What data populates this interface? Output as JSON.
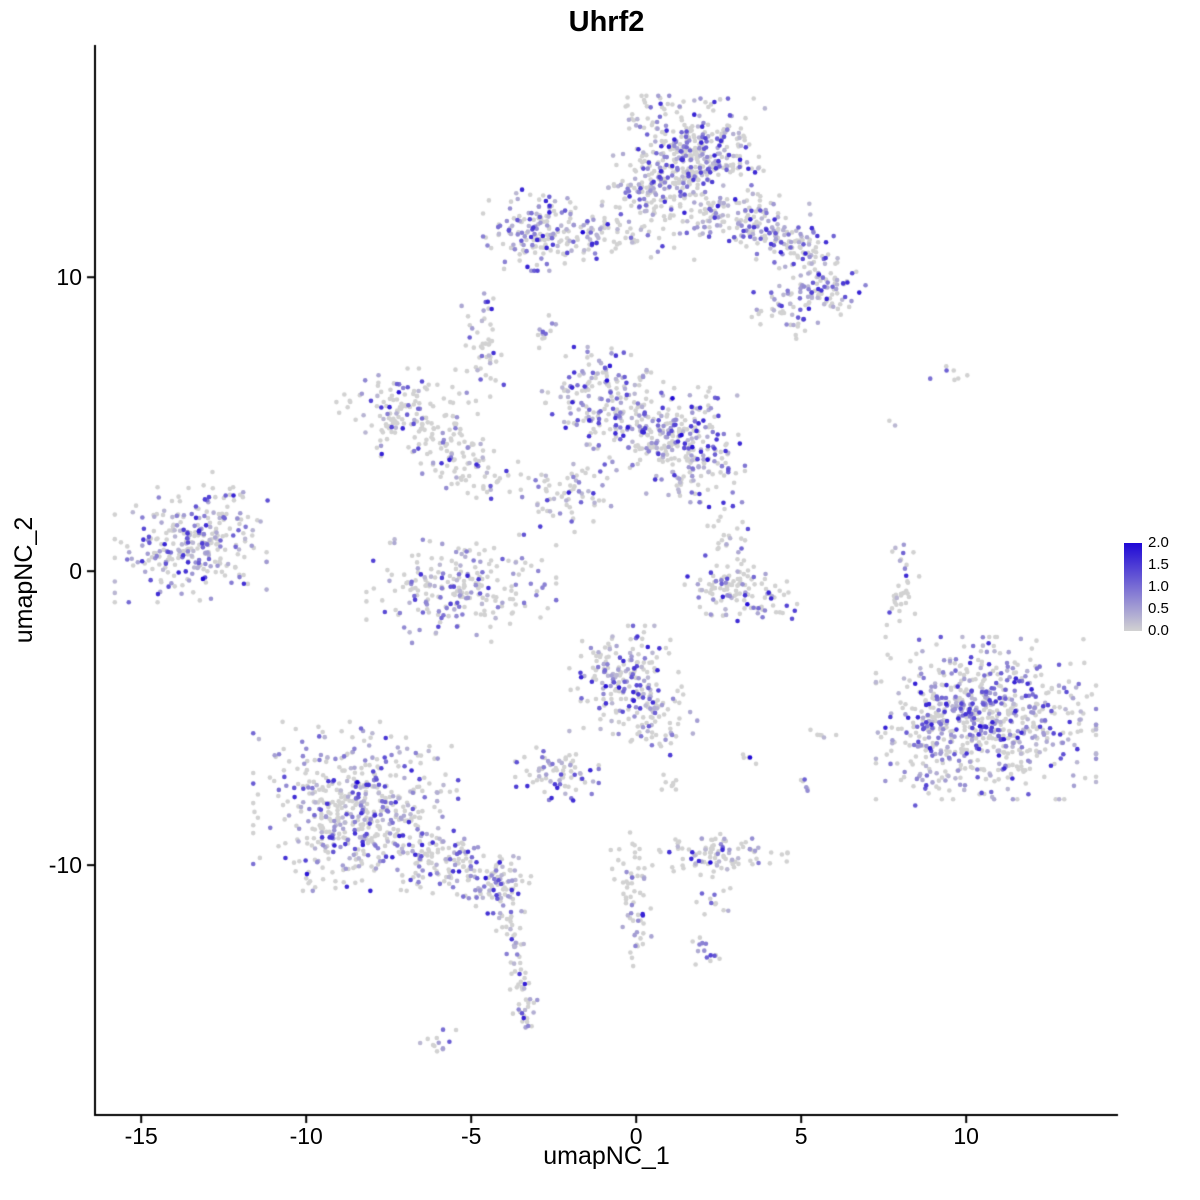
{
  "chart_data": {
    "type": "scatter",
    "title": "Uhrf2",
    "xlabel": "umapNC_1",
    "ylabel": "umapNC_2",
    "xlim": [
      -16.4,
      14.6
    ],
    "ylim": [
      -18.5,
      17.9
    ],
    "x_ticks": [
      -15,
      -10,
      -5,
      0,
      5,
      10
    ],
    "y_ticks": [
      10,
      0,
      -10
    ],
    "grid": false,
    "legend": {
      "position": "right",
      "ticks": [
        "2.0",
        "1.5",
        "1.0",
        "0.5",
        "0.0"
      ],
      "vmin": 0.0,
      "vmax": 2.0
    },
    "colors": {
      "low": "#d2d2d2",
      "high": "#1f08d6",
      "axis": "#000000",
      "background": "#ffffff"
    },
    "point_radius": 2.3,
    "seed": 42,
    "clusters": [
      {
        "name": "top-main",
        "cx": 1.6,
        "cy": 14.1,
        "sx": 1.0,
        "sy": 0.9,
        "rot": 0,
        "n": 420,
        "f": 0.45
      },
      {
        "name": "top-fringe",
        "cx": 0.4,
        "cy": 12.8,
        "sx": 0.7,
        "sy": 0.5,
        "rot": 0,
        "n": 80,
        "f": 0.4
      },
      {
        "name": "top-right-arm",
        "cx": 3.3,
        "cy": 11.9,
        "sx": 1.1,
        "sy": 0.5,
        "rot": -0.3,
        "n": 170,
        "f": 0.45
      },
      {
        "name": "arm-elbow",
        "cx": 5.0,
        "cy": 10.9,
        "sx": 0.55,
        "sy": 0.4,
        "rot": -0.5,
        "n": 55,
        "f": 0.5
      },
      {
        "name": "topright-blob",
        "cx": 5.8,
        "cy": 9.6,
        "sx": 0.5,
        "sy": 0.5,
        "rot": 0,
        "n": 85,
        "f": 0.6
      },
      {
        "name": "topright-sub",
        "cx": 4.5,
        "cy": 8.8,
        "sx": 0.45,
        "sy": 0.45,
        "rot": 0,
        "n": 45,
        "f": 0.55
      },
      {
        "name": "upperleft-cluster",
        "cx": -2.8,
        "cy": 11.6,
        "sx": 0.8,
        "sy": 0.6,
        "rot": 0,
        "n": 170,
        "f": 0.5
      },
      {
        "name": "upperleft-arm",
        "cx": -0.6,
        "cy": 11.4,
        "sx": 1.1,
        "sy": 0.35,
        "rot": 0,
        "n": 70,
        "f": 0.4
      },
      {
        "name": "tiny-mid-upper",
        "cx": -2.8,
        "cy": 8.4,
        "sx": 0.2,
        "sy": 0.35,
        "rot": 0,
        "n": 12,
        "f": 0.4
      },
      {
        "name": "mid-top",
        "cx": -0.9,
        "cy": 5.9,
        "sx": 0.85,
        "sy": 0.75,
        "rot": 0,
        "n": 190,
        "f": 0.45
      },
      {
        "name": "mid-right",
        "cx": 1.8,
        "cy": 4.3,
        "sx": 0.65,
        "sy": 0.85,
        "rot": 0,
        "n": 170,
        "f": 0.55
      },
      {
        "name": "mid-bridge",
        "cx": 0.4,
        "cy": 4.5,
        "sx": 0.9,
        "sy": 0.6,
        "rot": 0,
        "n": 110,
        "f": 0.35
      },
      {
        "name": "mid-lower-tail",
        "cx": -2.0,
        "cy": 2.7,
        "sx": 0.7,
        "sy": 0.55,
        "rot": 0.5,
        "n": 70,
        "f": 0.4
      },
      {
        "name": "left-loop",
        "cx": -6.9,
        "cy": 5.4,
        "sx": 0.95,
        "sy": 0.65,
        "rot": 0,
        "n": 150,
        "f": 0.35
      },
      {
        "name": "loop-arm",
        "cx": -5.2,
        "cy": 3.7,
        "sx": 0.85,
        "sy": 0.5,
        "rot": -0.5,
        "n": 90,
        "f": 0.3
      },
      {
        "name": "thin-strand",
        "cx": -4.6,
        "cy": 7.5,
        "sx": 0.3,
        "sy": 0.7,
        "rot": 0,
        "n": 40,
        "f": 0.35
      },
      {
        "name": "strand-tip",
        "cx": -4.5,
        "cy": 9.2,
        "sx": 0.15,
        "sy": 0.25,
        "rot": 0,
        "n": 8,
        "f": 0.3
      },
      {
        "name": "far-left",
        "cx": -13.5,
        "cy": 0.9,
        "sx": 1.0,
        "sy": 0.85,
        "rot": 0,
        "n": 270,
        "f": 0.5
      },
      {
        "name": "far-left-halo",
        "cx": -12.2,
        "cy": 1.5,
        "sx": 0.6,
        "sy": 0.9,
        "rot": 0,
        "n": 22,
        "f": 0.3
      },
      {
        "name": "midlow-annulus",
        "cx": -5.3,
        "cy": -0.6,
        "sx": 1.25,
        "sy": 0.8,
        "rot": 0,
        "n": 230,
        "f": 0.35
      },
      {
        "name": "comma",
        "cx": 3.2,
        "cy": -0.7,
        "sx": 0.75,
        "sy": 0.45,
        "rot": -0.3,
        "n": 120,
        "f": 0.3
      },
      {
        "name": "comma-arm",
        "cx": 2.7,
        "cy": 1.2,
        "sx": 0.3,
        "sy": 0.7,
        "rot": 0,
        "n": 28,
        "f": 0.35
      },
      {
        "name": "center-low",
        "cx": -0.3,
        "cy": -3.7,
        "sx": 0.75,
        "sy": 0.8,
        "rot": 0,
        "n": 190,
        "f": 0.5
      },
      {
        "name": "center-low-tail",
        "cx": 0.7,
        "cy": -5.0,
        "sx": 0.5,
        "sy": 0.6,
        "rot": 0,
        "n": 60,
        "f": 0.45
      },
      {
        "name": "small-mid-low",
        "cx": -2.4,
        "cy": -6.9,
        "sx": 0.55,
        "sy": 0.4,
        "rot": 0,
        "n": 75,
        "f": 0.45
      },
      {
        "name": "bottomleft-big",
        "cx": -8.5,
        "cy": -8.0,
        "sx": 1.35,
        "sy": 1.25,
        "rot": 0,
        "n": 520,
        "f": 0.42
      },
      {
        "name": "bottomleft-trail",
        "cx": -5.7,
        "cy": -9.9,
        "sx": 1.2,
        "sy": 0.5,
        "rot": -0.5,
        "n": 160,
        "f": 0.45
      },
      {
        "name": "trail-blob",
        "cx": -4.1,
        "cy": -10.6,
        "sx": 0.45,
        "sy": 0.45,
        "rot": 0,
        "n": 55,
        "f": 0.5
      },
      {
        "name": "strand-a",
        "cx": -3.8,
        "cy": -12.3,
        "sx": 0.25,
        "sy": 0.5,
        "rot": 0,
        "n": 28,
        "f": 0.35
      },
      {
        "name": "strand-b",
        "cx": -3.5,
        "cy": -13.7,
        "sx": 0.2,
        "sy": 0.45,
        "rot": 0,
        "n": 18,
        "f": 0.35
      },
      {
        "name": "strand-c",
        "cx": -3.4,
        "cy": -14.9,
        "sx": 0.25,
        "sy": 0.4,
        "rot": 0,
        "n": 22,
        "f": 0.5
      },
      {
        "name": "bottom-tiny",
        "cx": -6.1,
        "cy": -16.0,
        "sx": 0.3,
        "sy": 0.2,
        "rot": 0,
        "n": 12,
        "f": 0.5
      },
      {
        "name": "right-big",
        "cx": 10.6,
        "cy": -5.0,
        "sx": 1.45,
        "sy": 1.2,
        "rot": 0,
        "n": 680,
        "f": 0.5
      },
      {
        "name": "right-big-edge",
        "cx": 8.7,
        "cy": -5.9,
        "sx": 0.5,
        "sy": 0.9,
        "rot": 0,
        "n": 80,
        "f": 0.55
      },
      {
        "name": "right-strand",
        "cx": 8.0,
        "cy": -0.6,
        "sx": 0.25,
        "sy": 0.75,
        "rot": 0,
        "n": 35,
        "f": 0.3
      },
      {
        "name": "right-pair",
        "cx": 9.6,
        "cy": 6.7,
        "sx": 0.3,
        "sy": 0.15,
        "rot": 0,
        "n": 7,
        "f": 0.15
      },
      {
        "name": "right-dot",
        "cx": 7.7,
        "cy": 5.0,
        "sx": 0.1,
        "sy": 0.1,
        "rot": 0,
        "n": 2,
        "f": 0.6
      },
      {
        "name": "bottom-mid-smear",
        "cx": 2.4,
        "cy": -9.6,
        "sx": 0.95,
        "sy": 0.35,
        "rot": 0,
        "n": 95,
        "f": 0.3
      },
      {
        "name": "bottom-mid-dots",
        "cx": 2.3,
        "cy": -11.2,
        "sx": 0.3,
        "sy": 0.3,
        "rot": 0,
        "n": 12,
        "f": 0.3
      },
      {
        "name": "center-strand",
        "cx": -0.2,
        "cy": -10.5,
        "sx": 0.3,
        "sy": 0.7,
        "rot": 0,
        "n": 45,
        "f": 0.3
      },
      {
        "name": "center-strand-2",
        "cx": 0.0,
        "cy": -12.3,
        "sx": 0.2,
        "sy": 0.5,
        "rot": 0,
        "n": 18,
        "f": 0.35
      },
      {
        "name": "bottom-dots",
        "cx": 2.0,
        "cy": -12.9,
        "sx": 0.25,
        "sy": 0.3,
        "rot": 0,
        "n": 14,
        "f": 0.45
      },
      {
        "name": "sparse-1",
        "cx": 5.0,
        "cy": -7.4,
        "sx": 0.2,
        "sy": 0.15,
        "rot": 0,
        "n": 6,
        "f": 0.3
      },
      {
        "name": "sparse-2",
        "cx": 3.4,
        "cy": -6.4,
        "sx": 0.15,
        "sy": 0.15,
        "rot": 0,
        "n": 5,
        "f": 0.3
      },
      {
        "name": "sparse-3",
        "cx": 5.6,
        "cy": -5.6,
        "sx": 0.2,
        "sy": 0.15,
        "rot": 0,
        "n": 6,
        "f": 0.2
      },
      {
        "name": "sparse-4",
        "cx": 1.0,
        "cy": -7.3,
        "sx": 0.3,
        "sy": 0.2,
        "rot": 0,
        "n": 8,
        "f": 0.3
      }
    ]
  }
}
